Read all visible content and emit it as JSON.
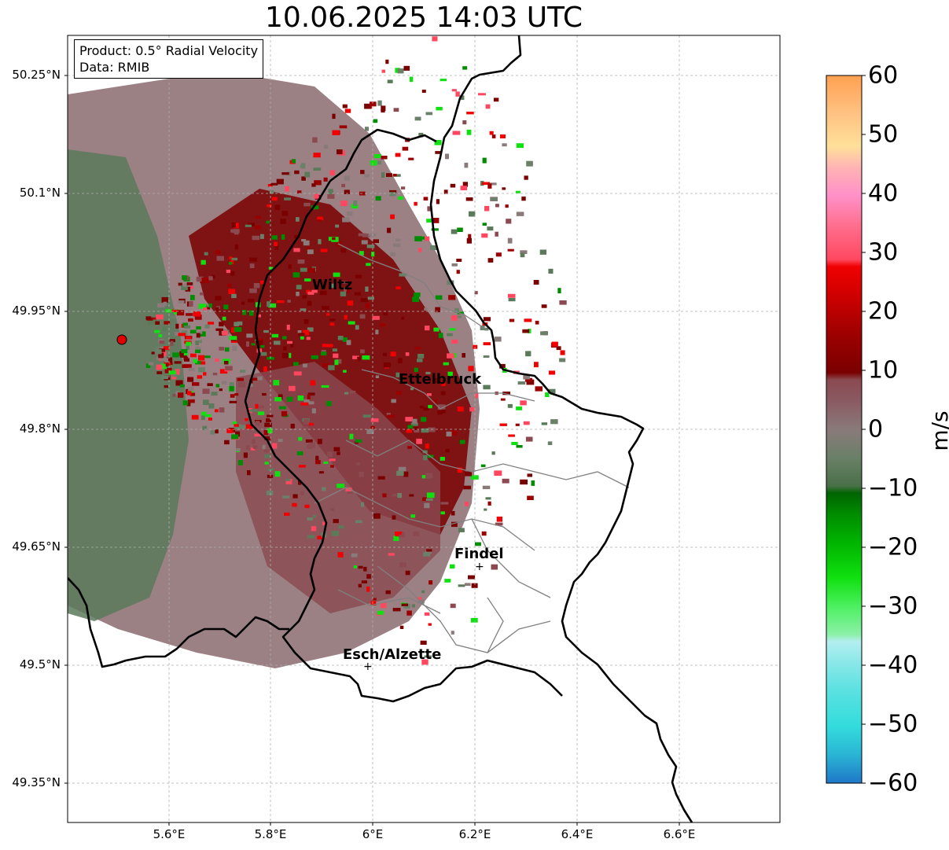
{
  "title": "10.06.2025 14:03 UTC",
  "info": {
    "product": "Product: 0.5° Radial Velocity",
    "source": "Data: RMIB"
  },
  "axes": {
    "lat_ticks": [
      "50.25°N",
      "50.1°N",
      "49.95°N",
      "49.8°N",
      "49.65°N",
      "49.5°N",
      "49.35°N"
    ],
    "lon_ticks": [
      "5.6°E",
      "5.8°E",
      "6°E",
      "6.2°E",
      "6.4°E",
      "6.6°E"
    ]
  },
  "colorbar": {
    "unit": "m/s",
    "tick_labels": [
      "60",
      "50",
      "40",
      "30",
      "20",
      "10",
      "0",
      "−10",
      "−20",
      "−30",
      "−40",
      "−50",
      "−60"
    ],
    "range": [
      -60,
      60
    ]
  },
  "cities": [
    {
      "name": "Wiltz",
      "lon": 5.93,
      "lat": 49.97
    },
    {
      "name": "Ettelbruck",
      "lon": 6.1,
      "lat": 49.85
    },
    {
      "name": "Findel",
      "lon": 6.21,
      "lat": 49.63
    },
    {
      "name": "Esch/Alzette",
      "lon": 5.98,
      "lat": 49.5
    }
  ],
  "radar_site": {
    "lon": 5.51,
    "lat": 49.91
  },
  "colors": {
    "outbound_dark": "#7a0000",
    "outbound_mid": "#8a4a50",
    "zero_gray": "#8a7a7a",
    "inbound_green": "#5a7a5a",
    "border": "#000000",
    "admin_border": "#808080"
  }
}
